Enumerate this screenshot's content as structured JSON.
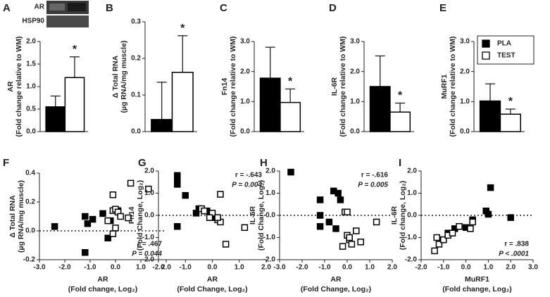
{
  "chart_data": [
    {
      "type": "bar",
      "panel": "A",
      "blot_labels": [
        "AR",
        "HSP90"
      ],
      "ylabel": [
        "AR",
        "(Fold change relative to WM)"
      ],
      "ylim": [
        0,
        2
      ],
      "yticks": [
        {
          "value": 0,
          "label": "0.0"
        },
        {
          "value": 0.5,
          "label": "0.5"
        },
        {
          "value": 1,
          "label": "1.0"
        },
        {
          "value": 1.5,
          "label": "1.5"
        },
        {
          "value": 2,
          "label": "2.0"
        }
      ],
      "series": [
        {
          "color": "#000000",
          "values": [
            0.55
          ],
          "errors": [
            0.24
          ]
        },
        {
          "color": "#ffffff",
          "values": [
            1.2
          ],
          "errors": [
            0.46
          ]
        }
      ],
      "annotation": "*"
    },
    {
      "type": "bar",
      "panel": "B",
      "ylabel": [
        "Δ Total RNA",
        "(µg RNA/mg muscle)"
      ],
      "ylim": [
        0,
        0.3
      ],
      "yticks": [
        {
          "value": 0,
          "label": "0.0"
        },
        0.1,
        0.2,
        0.3
      ],
      "series": [
        {
          "color": "#000000",
          "values": [
            0.033
          ],
          "errors": [
            0.102
          ]
        },
        {
          "color": "#ffffff",
          "values": [
            0.162
          ],
          "errors": [
            0.1
          ]
        }
      ],
      "annotation": "*"
    },
    {
      "type": "bar",
      "panel": "C",
      "ylabel": [
        "Fn14",
        "(Fold change relative to WM)"
      ],
      "ylim": [
        0,
        3
      ],
      "yticks": [
        {
          "value": 0,
          "label": "0.0"
        },
        {
          "value": 1,
          "label": "1.0"
        },
        {
          "value": 2,
          "label": "2.0"
        },
        {
          "value": 3,
          "label": "3.0"
        }
      ],
      "series": [
        {
          "color": "#000000",
          "values": [
            1.78
          ],
          "errors": [
            1.03
          ]
        },
        {
          "color": "#ffffff",
          "values": [
            0.97
          ],
          "errors": [
            0.45
          ]
        }
      ],
      "annotation": "*"
    },
    {
      "type": "bar",
      "panel": "D",
      "ylabel": [
        "IL-6R",
        "(Fold change relative to WM)"
      ],
      "ylim": [
        0,
        3
      ],
      "yticks": [
        {
          "value": 0,
          "label": "0.0"
        },
        {
          "value": 1,
          "label": "1.0"
        },
        {
          "value": 2,
          "label": "2.0"
        },
        {
          "value": 3,
          "label": "3.0"
        }
      ],
      "series": [
        {
          "color": "#000000",
          "values": [
            1.5
          ],
          "errors": [
            1.02
          ]
        },
        {
          "color": "#ffffff",
          "values": [
            0.65
          ],
          "errors": [
            0.3
          ]
        }
      ],
      "annotation": "*"
    },
    {
      "type": "bar",
      "panel": "E",
      "ylabel": [
        "MuRF1",
        "(Fold change relative to WM)"
      ],
      "ylim": [
        0,
        3
      ],
      "yticks": [
        {
          "value": 0,
          "label": "0.0"
        },
        {
          "value": 1,
          "label": "1.0"
        },
        {
          "value": 2,
          "label": "2.0"
        },
        {
          "value": 3,
          "label": "3.0"
        }
      ],
      "series": [
        {
          "name": "PLA",
          "color": "#000000",
          "values": [
            1.02
          ],
          "errors": [
            0.57
          ]
        },
        {
          "name": "TEST",
          "color": "#ffffff",
          "values": [
            0.58
          ],
          "errors": [
            0.17
          ]
        }
      ],
      "annotation": "*",
      "legend": "top-right"
    },
    {
      "type": "scatter",
      "panel": "F",
      "ylabel": [
        "Δ Total RNA",
        "(µg RNA/mg muscle)"
      ],
      "xlabel": [
        "AR",
        "(Fold change, Log₂)"
      ],
      "xlim": [
        -3,
        2
      ],
      "xticks": [
        {
          "value": -3,
          "label": "-3.0"
        },
        {
          "value": -2,
          "label": "-2.0"
        },
        {
          "value": -1,
          "label": "-1.0"
        },
        {
          "value": 0,
          "label": "0.0"
        },
        {
          "value": 1,
          "label": "1.0"
        },
        {
          "value": 2,
          "label": "2.0"
        }
      ],
      "ylim": [
        -0.2,
        0.4
      ],
      "yticks": [
        -0.2,
        {
          "value": 0,
          "label": "0.0"
        },
        0.2,
        0.4
      ],
      "reference_line": 0,
      "annotations": [
        "r = .467",
        "P = 0.044"
      ],
      "series": [
        {
          "color": "#000000",
          "x": [
            -2.4,
            -1.2,
            -1.1,
            -1.2,
            -0.5,
            -0.3,
            -0.2,
            0.1,
            -0.9
          ],
          "y": [
            0.03,
            0.1,
            0.05,
            -0.15,
            0.12,
            -0.05,
            0.07,
            0.14,
            0.08
          ]
        },
        {
          "color": "#ffffff",
          "x": [
            -0.1,
            0.0,
            0.1,
            0.2,
            -0.1,
            0.6,
            1.3,
            -0.3,
            0.5,
            0.0,
            -0.1
          ],
          "y": [
            0.14,
            0.15,
            0.13,
            0.1,
            0.25,
            0.33,
            0.29,
            0.07,
            0.09,
            0.02,
            -0.02
          ]
        }
      ]
    },
    {
      "type": "scatter",
      "panel": "G",
      "ylabel": [
        "Fn14",
        "(Fold Change, Log₂)"
      ],
      "xlabel": [
        "AR",
        "(Fold Change, Log₂)"
      ],
      "xlim": [
        -2,
        2
      ],
      "xticks": [
        {
          "value": -2,
          "label": "-2.0"
        },
        {
          "value": -1,
          "label": "-1.0"
        },
        {
          "value": 0,
          "label": "0.0"
        },
        {
          "value": 1,
          "label": "1.0"
        },
        {
          "value": 2,
          "label": "2.0"
        }
      ],
      "ylim": [
        -2,
        2
      ],
      "yticks": [
        {
          "value": -2,
          "label": "-2.0"
        },
        {
          "value": -1,
          "label": "-1.0"
        },
        {
          "value": 0,
          "label": "0.0"
        },
        {
          "value": 1,
          "label": "1.0"
        },
        {
          "value": 2,
          "label": "2.0"
        }
      ],
      "reference_line": 0,
      "annotations": [
        "r = -.643",
        "P = 0.004"
      ],
      "series": [
        {
          "color": "#000000",
          "x": [
            -1.3,
            -1.3,
            -1.3,
            -1.0,
            -0.6,
            -0.5,
            -1.3,
            -0.2,
            0.0
          ],
          "y": [
            1.8,
            1.65,
            1.4,
            0.9,
            0.1,
            0.3,
            -0.5,
            0.2,
            -0.1
          ]
        },
        {
          "color": "#ffffff",
          "x": [
            -0.4,
            -0.3,
            0.0,
            0.2,
            0.3,
            0.3,
            0.5,
            1.2,
            0.2,
            -0.1
          ],
          "y": [
            0.3,
            0.2,
            0.1,
            -0.2,
            0.95,
            -0.3,
            -1.3,
            -0.55,
            -0.1,
            -0.1
          ]
        }
      ]
    },
    {
      "type": "scatter",
      "panel": "H",
      "ylabel": [
        "IL-6R",
        "(Fold Change, Log₂)"
      ],
      "xlabel": [
        "AR",
        "(Fold Change, Log₂)"
      ],
      "xlim": [
        -3,
        2
      ],
      "xticks": [
        {
          "value": -3,
          "label": "-3.0"
        },
        {
          "value": -2,
          "label": "-2.0"
        },
        {
          "value": -1,
          "label": "-1.0"
        },
        {
          "value": 0,
          "label": "0.0"
        },
        {
          "value": 1,
          "label": "1.0"
        },
        {
          "value": 2,
          "label": "2.0"
        }
      ],
      "ylim": [
        -2,
        2
      ],
      "yticks": [
        {
          "value": -2,
          "label": "-2.0"
        },
        {
          "value": -1,
          "label": "-1.0"
        },
        {
          "value": 0,
          "label": "0.0"
        },
        {
          "value": 1,
          "label": "1.0"
        },
        {
          "value": 2,
          "label": "2.0"
        }
      ],
      "reference_line": 0,
      "annotations": [
        "r = -.616",
        "P = 0.005"
      ],
      "series": [
        {
          "color": "#000000",
          "x": [
            -2.5,
            -1.2,
            -1.2,
            -1.2,
            -0.6,
            -0.4,
            -0.3,
            -0.5,
            -0.8
          ],
          "y": [
            1.95,
            0.7,
            0.0,
            -0.5,
            1.1,
            1.0,
            0.7,
            -0.6,
            -0.3
          ]
        },
        {
          "color": "#ffffff",
          "x": [
            -0.1,
            0.0,
            0.1,
            0.0,
            -0.2,
            0.2,
            0.4,
            0.6,
            1.3,
            0.1
          ],
          "y": [
            0.15,
            0.15,
            -1.1,
            -0.9,
            -1.4,
            -1.3,
            -0.7,
            -1.2,
            -0.3,
            -1.0
          ]
        }
      ]
    },
    {
      "type": "scatter",
      "panel": "I",
      "ylabel": [
        "IL-6R",
        "(Fold change, Log₂)"
      ],
      "xlabel": [
        "MuRF1",
        "(Fold change, Log₂)"
      ],
      "xlim": [
        -2,
        3
      ],
      "xticks": [
        {
          "value": -2,
          "label": "-2.0"
        },
        {
          "value": -1,
          "label": "-1.0"
        },
        {
          "value": 0,
          "label": "0.0"
        },
        {
          "value": 1,
          "label": "1.0"
        },
        {
          "value": 2,
          "label": "2.0"
        },
        {
          "value": 3,
          "label": "3.0"
        }
      ],
      "ylim": [
        -2,
        2
      ],
      "yticks": [
        {
          "value": -2,
          "label": "-2.0"
        },
        {
          "value": -1,
          "label": "-1.0"
        },
        {
          "value": 0,
          "label": "0.0"
        },
        {
          "value": 1,
          "label": "1.0"
        },
        {
          "value": 2,
          "label": "2.0"
        }
      ],
      "reference_line": 0,
      "annotations": [
        "r = .838",
        "P < .0001"
      ],
      "series": [
        {
          "color": "#000000",
          "x": [
            1.1,
            0.9,
            1.0,
            2.0,
            0.3,
            0.0,
            -0.5,
            -0.8,
            -1.0
          ],
          "y": [
            1.25,
            0.2,
            0.05,
            -0.1,
            -0.2,
            -0.55,
            -0.6,
            -0.8,
            -1.1
          ]
        },
        {
          "color": "#ffffff",
          "x": [
            -1.4,
            -1.2,
            -1.0,
            -0.8,
            -0.6,
            -0.3,
            0.3,
            0.2,
            -1.3
          ],
          "y": [
            -1.6,
            -1.3,
            -1.1,
            -0.9,
            -0.8,
            -0.5,
            -0.3,
            -0.6,
            -1.0
          ]
        }
      ]
    }
  ]
}
